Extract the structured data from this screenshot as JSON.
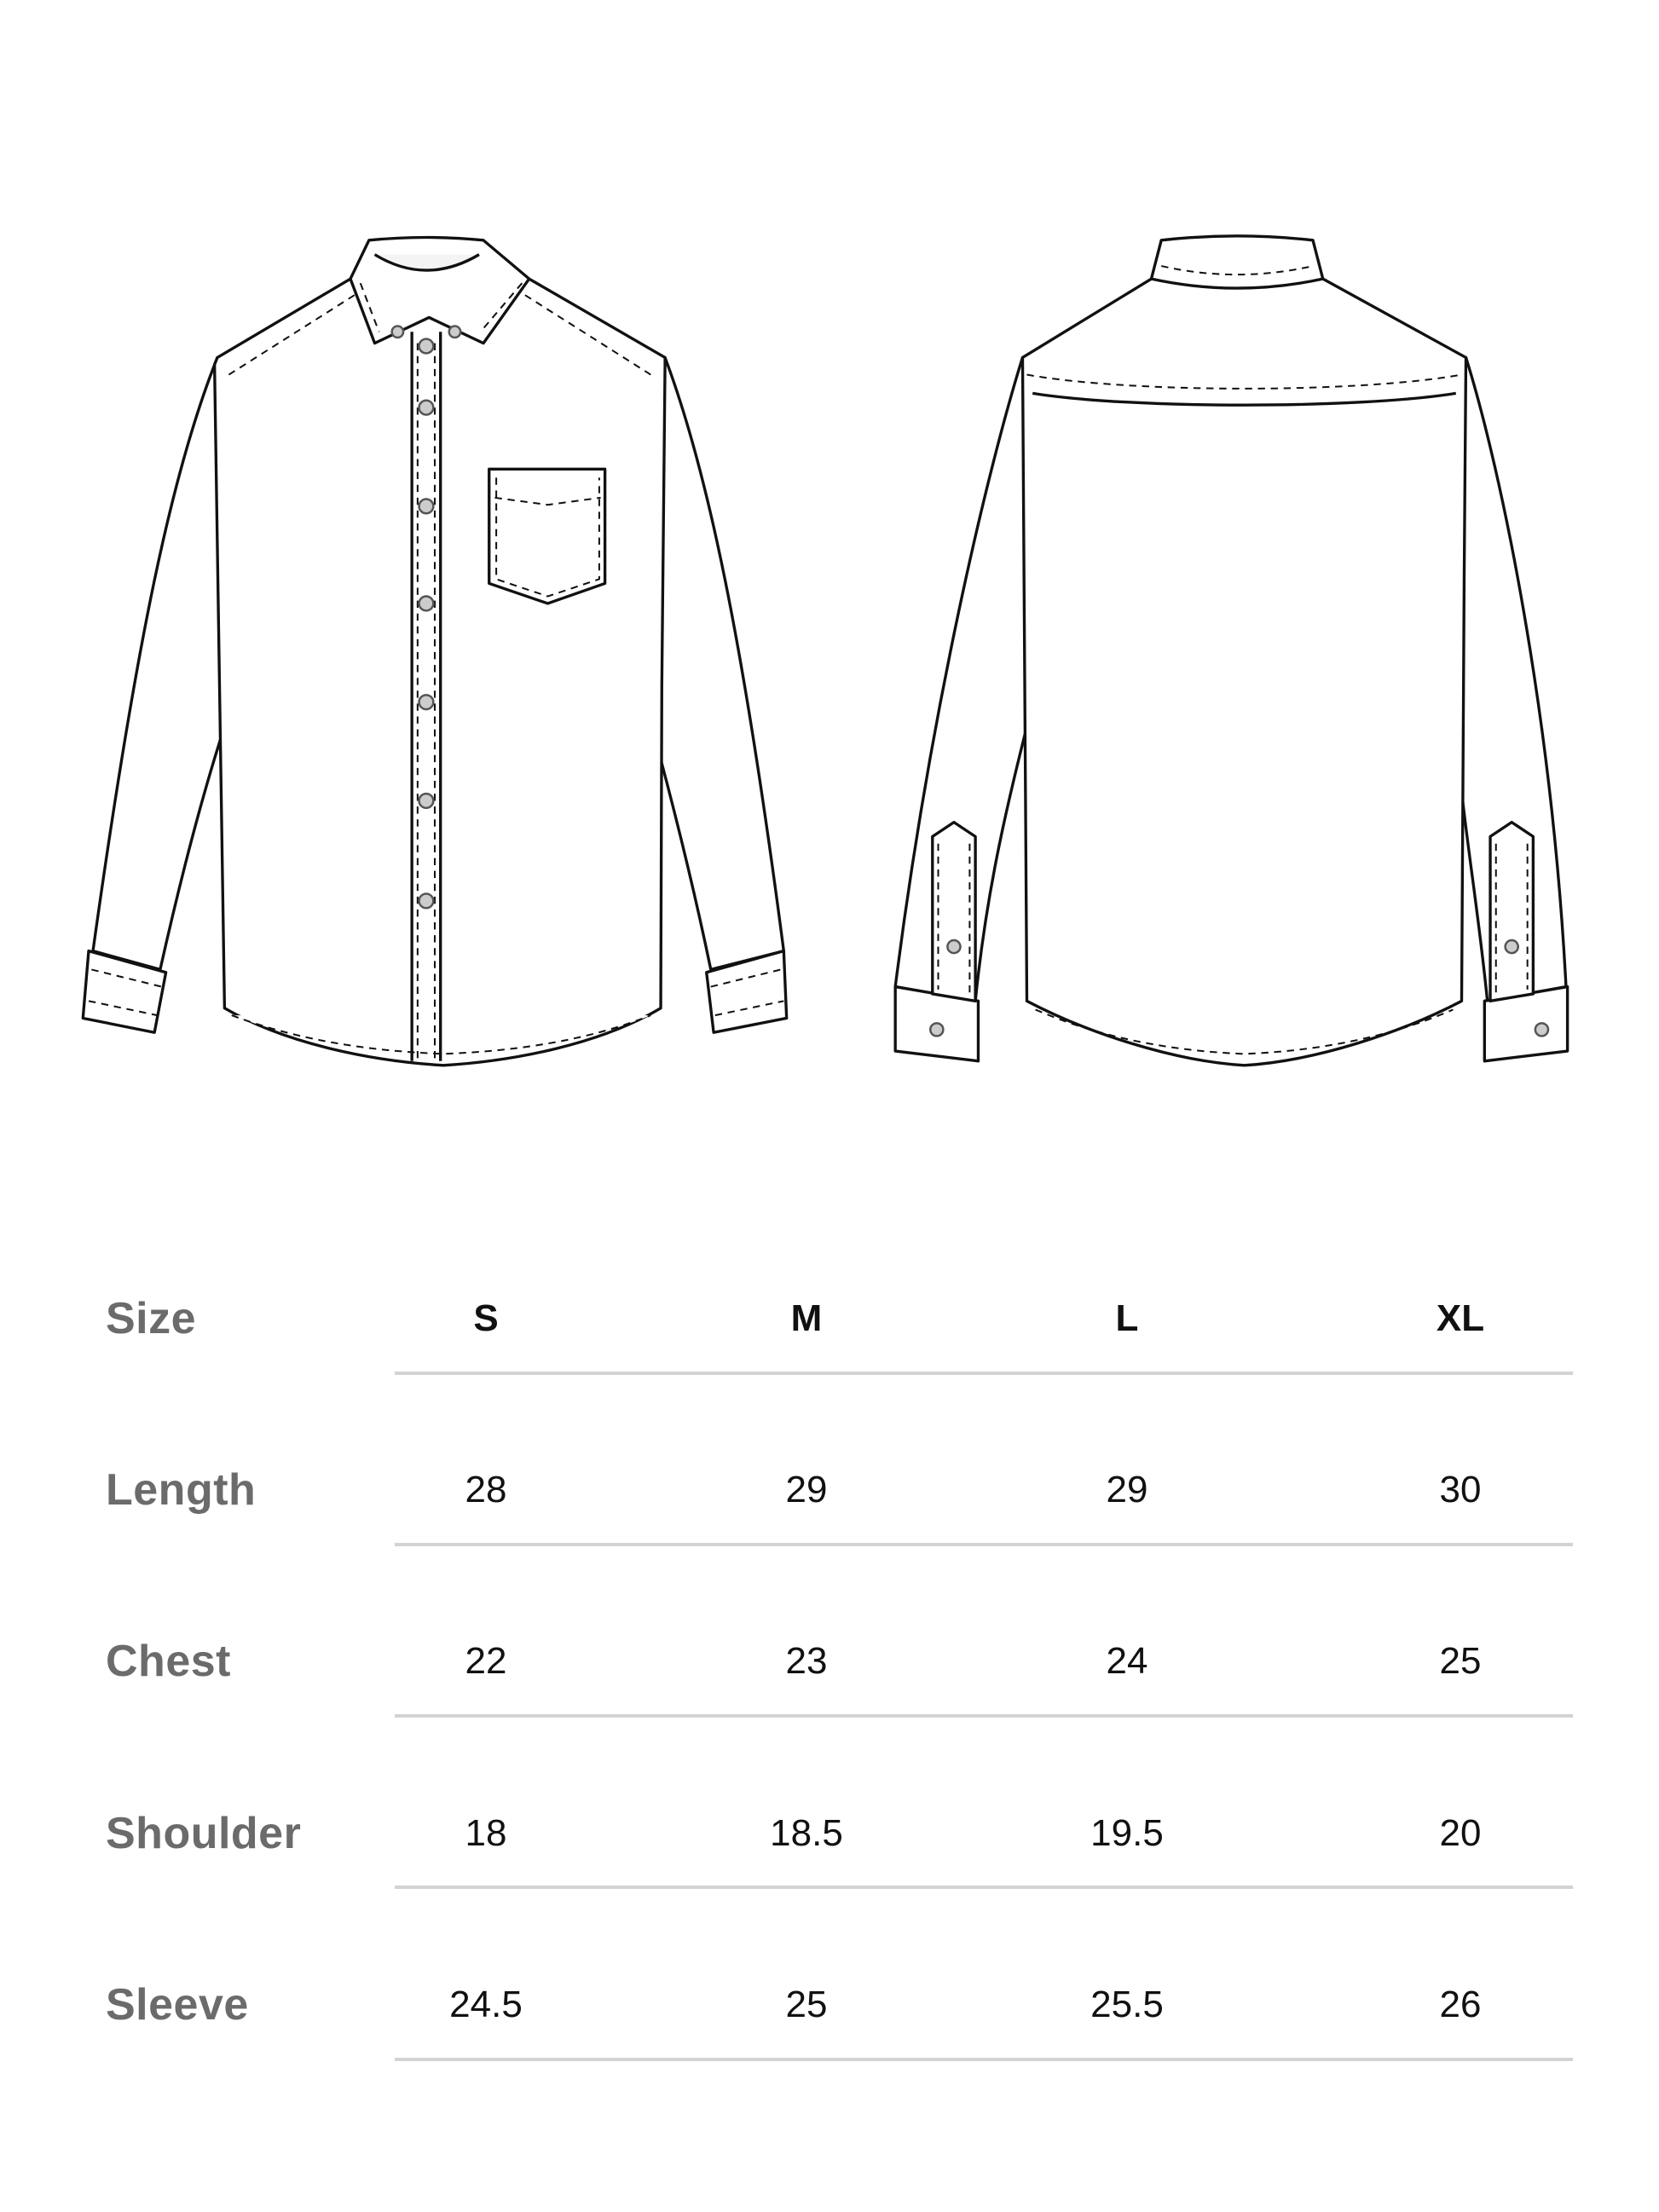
{
  "illustrations": {
    "front_view": "shirt-front-icon",
    "back_view": "shirt-back-icon"
  },
  "size_chart": {
    "header_label": "Size",
    "sizes": [
      "S",
      "M",
      "L",
      "XL"
    ],
    "rows": [
      {
        "label": "Length",
        "values": [
          "28",
          "29",
          "29",
          "30"
        ]
      },
      {
        "label": "Chest",
        "values": [
          "22",
          "23",
          "24",
          "25"
        ]
      },
      {
        "label": "Shoulder",
        "values": [
          "18",
          "18.5",
          "19.5",
          "20"
        ]
      },
      {
        "label": "Sleeve",
        "values": [
          "24.5",
          "25",
          "25.5",
          "26"
        ]
      }
    ]
  },
  "colors": {
    "label": "#6b6b6b",
    "value": "#111111",
    "rule": "#d3d3d3"
  }
}
